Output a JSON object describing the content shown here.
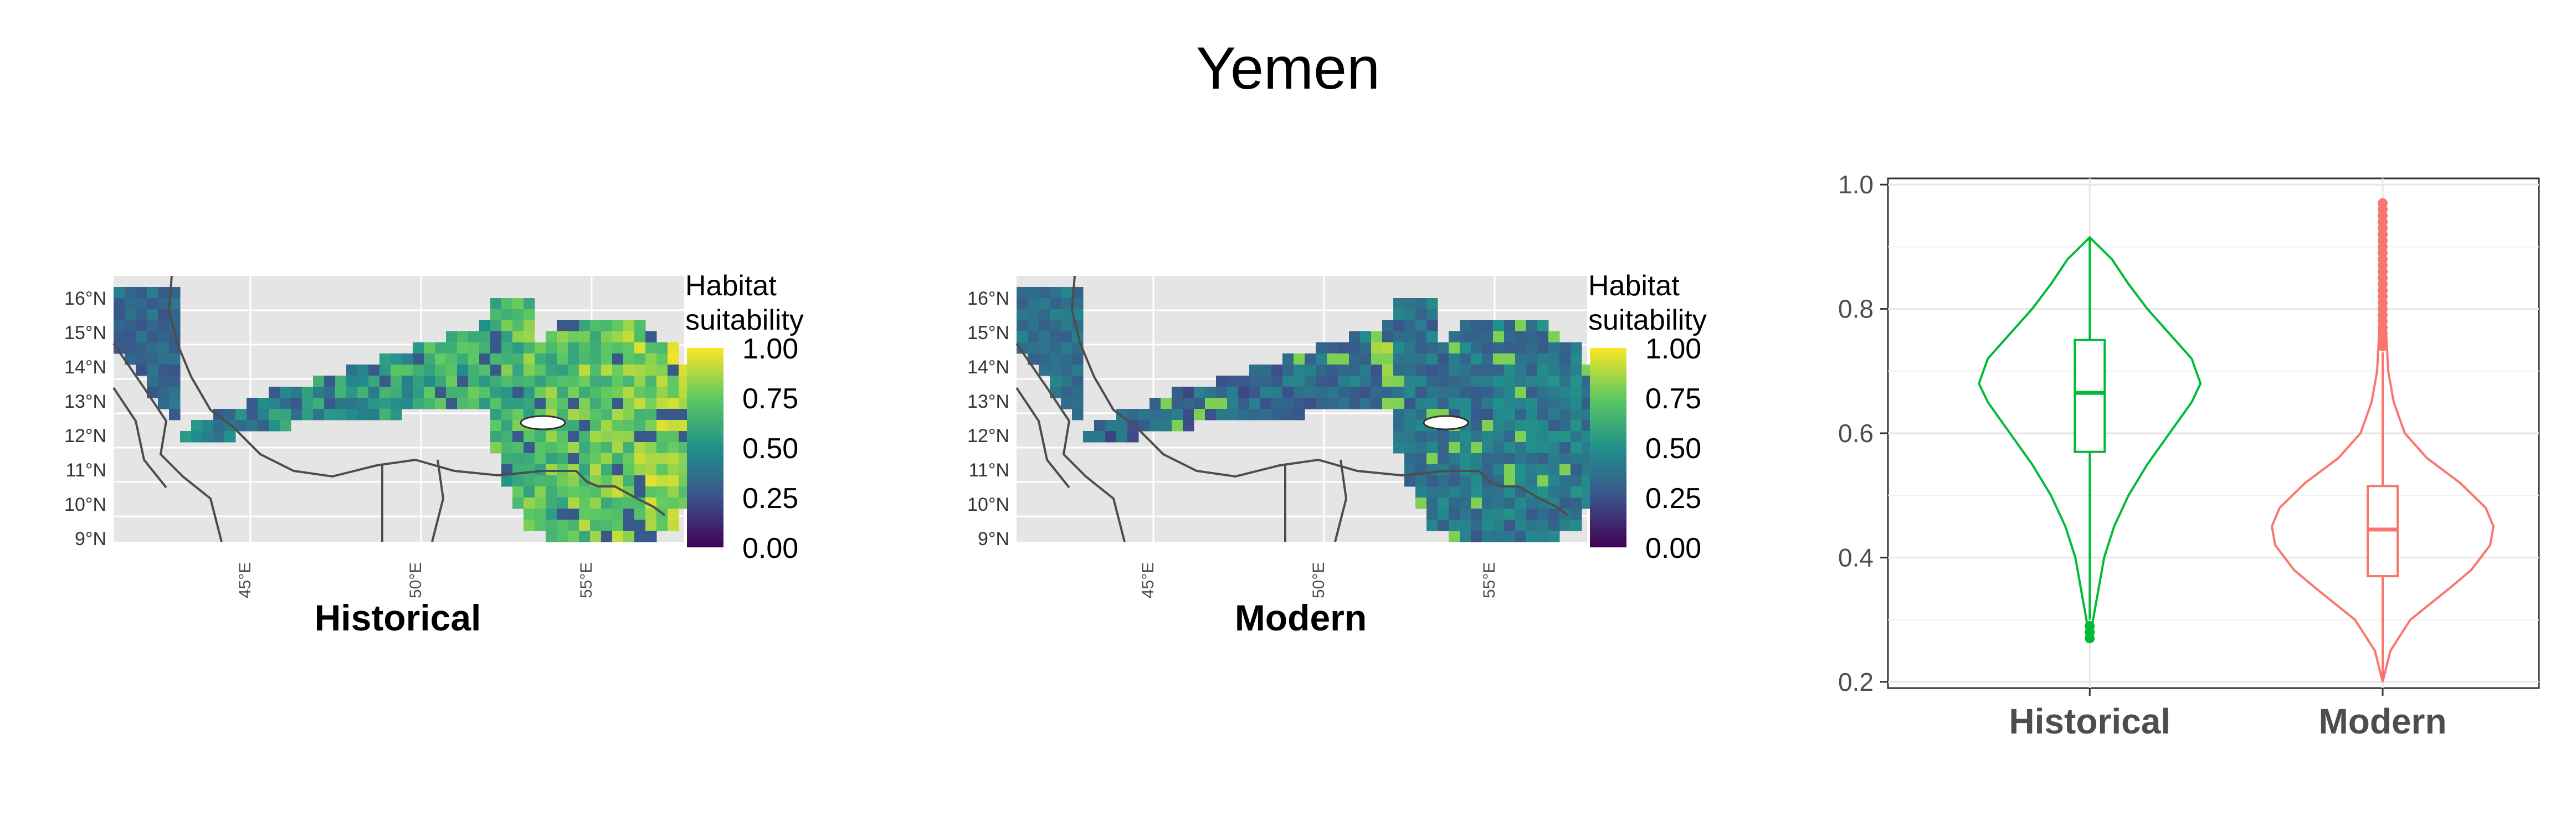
{
  "title": "Yemen",
  "map_panels": [
    {
      "label": "Historical",
      "y_ticks": [
        "16°N",
        "15°N",
        "14°N",
        "13°N",
        "12°N",
        "11°N",
        "10°N",
        "9°N"
      ],
      "x_ticks": [
        "45°E",
        "50°E",
        "55°E"
      ],
      "legend": {
        "title_line1": "Habitat",
        "title_line2": "suitability",
        "ticks": [
          "1.00",
          "0.75",
          "0.50",
          "0.25",
          "0.00"
        ],
        "colors": [
          "#fde725",
          "#5ec962",
          "#21918c",
          "#3b528b",
          "#440154"
        ]
      }
    },
    {
      "label": "Modern",
      "y_ticks": [
        "16°N",
        "15°N",
        "14°N",
        "13°N",
        "12°N",
        "11°N",
        "10°N",
        "9°N"
      ],
      "x_ticks": [
        "45°E",
        "50°E",
        "55°E"
      ],
      "legend": {
        "title_line1": "Habitat",
        "title_line2": "suitability",
        "ticks": [
          "1.00",
          "0.75",
          "0.50",
          "0.25",
          "0.00"
        ],
        "colors": [
          "#fde725",
          "#5ec962",
          "#21918c",
          "#3b528b",
          "#440154"
        ]
      }
    }
  ],
  "chart_data": [
    {
      "type": "heatmap",
      "description_panel": "Historical",
      "x_ticks": [
        "45°E",
        "50°E",
        "55°E"
      ],
      "y_ticks": [
        "16°N",
        "15°N",
        "14°N",
        "13°N",
        "12°N",
        "11°N",
        "10°N",
        "9°N"
      ],
      "legend_title": "Habitat suitability",
      "value_range": [
        0,
        1
      ],
      "legend_ticks": [
        0.0,
        0.25,
        0.5,
        0.75,
        1.0
      ]
    },
    {
      "type": "heatmap",
      "description_panel": "Modern",
      "x_ticks": [
        "45°E",
        "50°E",
        "55°E"
      ],
      "y_ticks": [
        "16°N",
        "15°N",
        "14°N",
        "13°N",
        "12°N",
        "11°N",
        "10°N",
        "9°N"
      ],
      "legend_title": "Habitat suitability",
      "value_range": [
        0,
        1
      ],
      "legend_ticks": [
        0.0,
        0.25,
        0.5,
        0.75,
        1.0
      ]
    },
    {
      "type": "violin",
      "categories": [
        "Historical",
        "Modern"
      ],
      "ylim": [
        0.19,
        1.01
      ],
      "y_ticks": [
        "0.2",
        "0.4",
        "0.6",
        "0.8",
        "1.0"
      ],
      "grid": true,
      "series": [
        {
          "name": "Historical",
          "color": "#00ba38",
          "min": 0.27,
          "q1": 0.57,
          "median": 0.665,
          "q3": 0.75,
          "max": 0.915,
          "lower_whisker": 0.3,
          "upper_whisker": 0.915,
          "outliers": [
            0.27,
            0.28,
            0.29
          ],
          "density_profile": [
            [
              0.27,
              0.0
            ],
            [
              0.3,
              0.03
            ],
            [
              0.35,
              0.08
            ],
            [
              0.4,
              0.13
            ],
            [
              0.45,
              0.22
            ],
            [
              0.5,
              0.35
            ],
            [
              0.55,
              0.52
            ],
            [
              0.6,
              0.72
            ],
            [
              0.65,
              0.92
            ],
            [
              0.68,
              1.0
            ],
            [
              0.72,
              0.92
            ],
            [
              0.76,
              0.72
            ],
            [
              0.8,
              0.52
            ],
            [
              0.84,
              0.35
            ],
            [
              0.88,
              0.2
            ],
            [
              0.915,
              0.0
            ]
          ]
        },
        {
          "name": "Modern",
          "color": "#f8766d",
          "min": 0.2,
          "q1": 0.37,
          "median": 0.445,
          "q3": 0.515,
          "max": 0.97,
          "lower_whisker": 0.2,
          "upper_whisker": 0.73,
          "outliers": [
            0.74,
            0.75,
            0.76,
            0.77,
            0.78,
            0.79,
            0.8,
            0.81,
            0.82,
            0.83,
            0.84,
            0.85,
            0.86,
            0.87,
            0.88,
            0.89,
            0.9,
            0.91,
            0.92,
            0.93,
            0.94,
            0.95,
            0.96,
            0.97
          ],
          "density_profile": [
            [
              0.2,
              0.0
            ],
            [
              0.25,
              0.07
            ],
            [
              0.3,
              0.25
            ],
            [
              0.35,
              0.6
            ],
            [
              0.38,
              0.8
            ],
            [
              0.42,
              0.97
            ],
            [
              0.45,
              1.0
            ],
            [
              0.48,
              0.93
            ],
            [
              0.52,
              0.7
            ],
            [
              0.56,
              0.4
            ],
            [
              0.6,
              0.2
            ],
            [
              0.65,
              0.1
            ],
            [
              0.7,
              0.05
            ],
            [
              0.8,
              0.02
            ],
            [
              0.9,
              0.01
            ],
            [
              0.97,
              0.0
            ]
          ]
        }
      ]
    }
  ]
}
